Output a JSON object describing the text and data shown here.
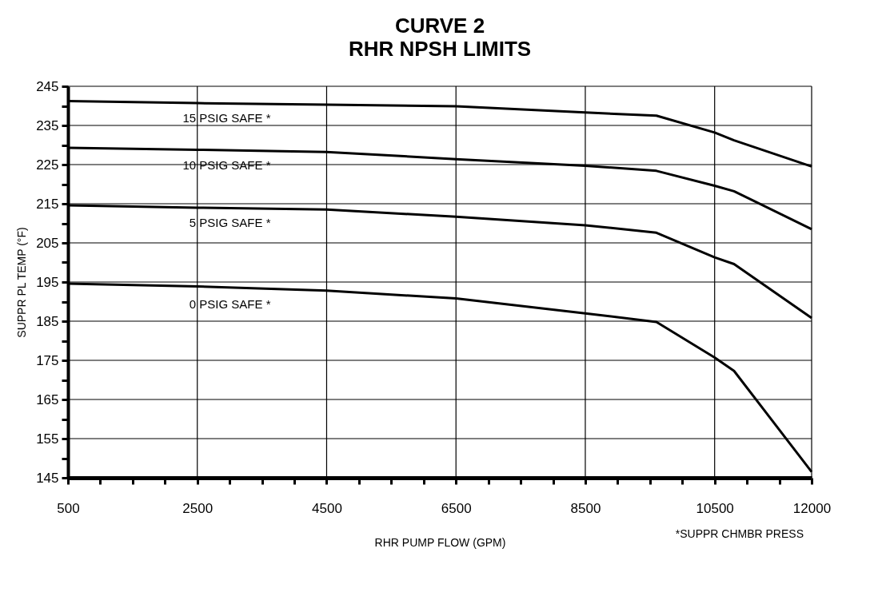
{
  "chart_data": {
    "type": "line",
    "title": "CURVE 2",
    "subtitle": "RHR NPSH LIMITS",
    "xlabel": "RHR PUMP FLOW (GPM)",
    "ylabel": "SUPPR PL TEMP (°F)",
    "annotations": [
      "*SUPPR CHMBR PRESS"
    ],
    "x": [
      500,
      2500,
      4500,
      6500,
      8500,
      9600,
      10500,
      10800,
      12000
    ],
    "series": [
      {
        "name": "15 PSIG SAFE *",
        "color": "#000000",
        "values": [
          241.2,
          240.7,
          240.3,
          239.9,
          238.3,
          237.5,
          233.2,
          231.2,
          224.5
        ]
      },
      {
        "name": "10 PSIG SAFE *",
        "color": "#000000",
        "values": [
          229.3,
          228.8,
          228.2,
          226.4,
          224.7,
          223.4,
          219.6,
          218.2,
          208.5
        ]
      },
      {
        "name": "5 PSIG SAFE *",
        "color": "#000000",
        "values": [
          214.6,
          214.0,
          213.5,
          211.7,
          209.5,
          207.6,
          201.3,
          199.6,
          185.8
        ]
      },
      {
        "name": "0 PSIG SAFE *",
        "color": "#000000",
        "values": [
          194.6,
          193.9,
          192.8,
          190.8,
          187.0,
          184.8,
          175.7,
          172.3,
          146.5
        ]
      }
    ],
    "xlim": [
      500,
      12000
    ],
    "ylim": [
      145,
      245
    ],
    "xticks": [
      500,
      {
        "value": 1000,
        "label": null
      },
      {
        "value": 1500,
        "label": null
      },
      {
        "value": 2000,
        "label": null
      },
      2500,
      {
        "value": 3000,
        "label": null
      },
      {
        "value": 3500,
        "label": null
      },
      {
        "value": 4000,
        "label": null
      },
      4500,
      {
        "value": 5000,
        "label": null
      },
      {
        "value": 5500,
        "label": null
      },
      {
        "value": 6000,
        "label": null
      },
      6500,
      {
        "value": 7000,
        "label": null
      },
      {
        "value": 7500,
        "label": null
      },
      {
        "value": 8000,
        "label": null
      },
      8500,
      {
        "value": 9000,
        "label": null
      },
      {
        "value": 9500,
        "label": null
      },
      {
        "value": 10000,
        "label": null
      },
      10500,
      {
        "value": 11000,
        "label": null
      },
      {
        "value": 11500,
        "label": null
      },
      12000
    ],
    "yticks": [
      145,
      {
        "value": 150,
        "label": null
      },
      155,
      {
        "value": 160,
        "label": null
      },
      165,
      {
        "value": 170,
        "label": null
      },
      175,
      {
        "value": 180,
        "label": null
      },
      185,
      {
        "value": 190,
        "label": null
      },
      195,
      {
        "value": 200,
        "label": null
      },
      205,
      {
        "value": 210,
        "label": null
      },
      215,
      {
        "value": 220,
        "label": null
      },
      225,
      {
        "value": 230,
        "label": null
      },
      235,
      {
        "value": 240,
        "label": null
      },
      245
    ],
    "grid": true,
    "marker": "none",
    "line_style": "solid"
  }
}
